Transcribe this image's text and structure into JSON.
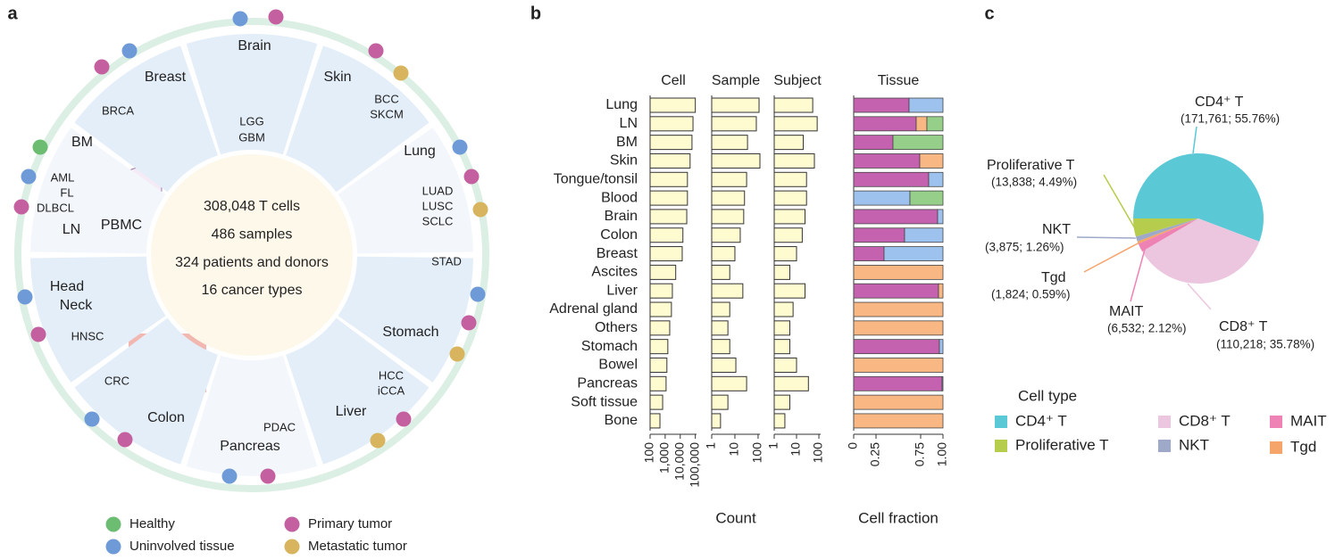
{
  "panels": [
    "a",
    "b",
    "c"
  ],
  "diagram": {
    "center": [
      "308,048 T cells",
      "486 samples",
      "324 patients and donors",
      "16 cancer types"
    ],
    "sectors": [
      {
        "organs": [
          "Brain"
        ],
        "cancers": [
          "LGG",
          "GBM"
        ]
      },
      {
        "organs": [
          "Skin"
        ],
        "cancers": [
          "BCC",
          "SKCM"
        ]
      },
      {
        "organs": [
          "Lung"
        ],
        "cancers": [
          "LUAD",
          "LUSC",
          "SCLC"
        ]
      },
      {
        "organs": [
          "Stomach"
        ],
        "cancers": [
          "STAD"
        ]
      },
      {
        "organs": [
          "Liver"
        ],
        "cancers": [
          "HCC",
          "iCCA"
        ]
      },
      {
        "organs": [
          "Pancreas"
        ],
        "cancers": [
          "PDAC"
        ]
      },
      {
        "organs": [
          "Colon"
        ],
        "cancers": [
          "CRC"
        ]
      },
      {
        "organs": [
          "Head",
          "Neck"
        ],
        "cancers": [
          "HNSC"
        ]
      },
      {
        "organs": [
          "BM",
          "LN",
          "PBMC"
        ],
        "cancers": [
          "AML",
          "FL",
          "DLBCL"
        ]
      },
      {
        "organs": [
          "Breast"
        ],
        "cancers": [
          "BRCA"
        ]
      }
    ],
    "legend": [
      {
        "label": "Healthy",
        "color": "#6cbd72"
      },
      {
        "label": "Uninvolved tissue",
        "color": "#6e9bd8"
      },
      {
        "label": "Primary tumor",
        "color": "#c4609f"
      },
      {
        "label": "Metastatic tumor",
        "color": "#d8b45e"
      }
    ]
  },
  "chart_data": [
    {
      "type": "bar",
      "title": "Cell",
      "xscale": "log",
      "color": "#fffbd0",
      "categories": [
        "Lung",
        "LN",
        "BM",
        "Skin",
        "Tongue/tonsil",
        "Blood",
        "Brain",
        "Colon",
        "Breast",
        "Ascites",
        "Liver",
        "Adrenal gland",
        "Others",
        "Stomach",
        "Bowel",
        "Pancreas",
        "Soft tissue",
        "Bone"
      ],
      "values": [
        100000,
        70000,
        60000,
        45000,
        30000,
        30000,
        27000,
        15000,
        13500,
        5000,
        3000,
        2600,
        2000,
        1500,
        1300,
        1150,
        680,
        450
      ],
      "xlim": [
        100,
        120000
      ],
      "xticks": [
        100,
        {
          "value": 1000,
          "label": "1,000"
        },
        {
          "value": 10000,
          "label": "10,000"
        },
        {
          "value": 100000,
          "label": "100,000"
        }
      ]
    },
    {
      "type": "bar",
      "title": "Sample",
      "xlabel": "Count",
      "xscale": "log",
      "color": "#fffbd0",
      "values": [
        110,
        84,
        35,
        120,
        32,
        26,
        24,
        17,
        10,
        6,
        22,
        6,
        5,
        6,
        11,
        32,
        5,
        2.4
      ],
      "xlim": [
        1,
        120
      ],
      "xticks": [
        1,
        10,
        100
      ]
    },
    {
      "type": "bar",
      "title": "Subject",
      "xscale": "log",
      "color": "#fffbd0",
      "values": [
        53,
        84,
        20,
        63,
        28,
        28,
        24,
        18,
        10,
        5,
        24,
        7,
        5,
        5,
        10,
        34,
        5,
        3
      ],
      "xlim": [
        1,
        120
      ],
      "xticks": [
        1,
        10,
        100
      ]
    },
    {
      "type": "stacked_bar",
      "title": "Tissue",
      "xlabel": "Cell fraction",
      "series": [
        {
          "color": "#c462b0",
          "values": [
            0.62,
            0.7,
            0.44,
            0.74,
            0.84,
            0,
            0.94,
            0.57,
            0.34,
            0,
            0.95,
            0,
            0,
            0.96,
            0,
            0.99,
            0,
            0
          ]
        },
        {
          "color": "#9ec2ee",
          "values": [
            0.38,
            0,
            0,
            0,
            0.16,
            0.63,
            0.06,
            0.43,
            0.66,
            0,
            0,
            0,
            0,
            0.04,
            0,
            0.01,
            0,
            0
          ]
        },
        {
          "color": "#f9b783",
          "values": [
            0,
            0.12,
            0,
            0.26,
            0,
            0,
            0,
            0,
            0,
            1,
            0.05,
            1,
            1,
            0,
            1,
            0,
            1,
            1
          ]
        },
        {
          "color": "#96cf8a",
          "values": [
            0,
            0.18,
            0.56,
            0,
            0,
            0.37,
            0,
            0,
            0,
            0,
            0,
            0,
            0,
            0,
            0,
            0,
            0,
            0
          ]
        }
      ],
      "xlim": [
        0,
        1
      ],
      "xticks": [
        0,
        0.25,
        0.75,
        {
          "value": 1,
          "label": "1.00"
        }
      ]
    },
    {
      "type": "pie",
      "legend_title": "Cell type",
      "categories": [
        "CD4⁺ T",
        "CD8⁺ T",
        "MAIT",
        "Tgd",
        "NKT",
        "Proliferative T"
      ],
      "values": [
        55.76,
        35.78,
        2.12,
        0.59,
        1.26,
        4.49
      ],
      "value_labels": [
        "(171,761; 55.76%)",
        "(110,218; 35.78%)",
        "(6,532; 2.12%)",
        "(1,824; 0.59%)",
        "(3,875; 1.26%)",
        "(13,838; 4.49%)"
      ],
      "colors": [
        "#5bc8d6",
        "#ecc6df",
        "#ee82b5",
        "#f5a46a",
        "#9ea8c8",
        "#b5cc4c"
      ]
    }
  ]
}
